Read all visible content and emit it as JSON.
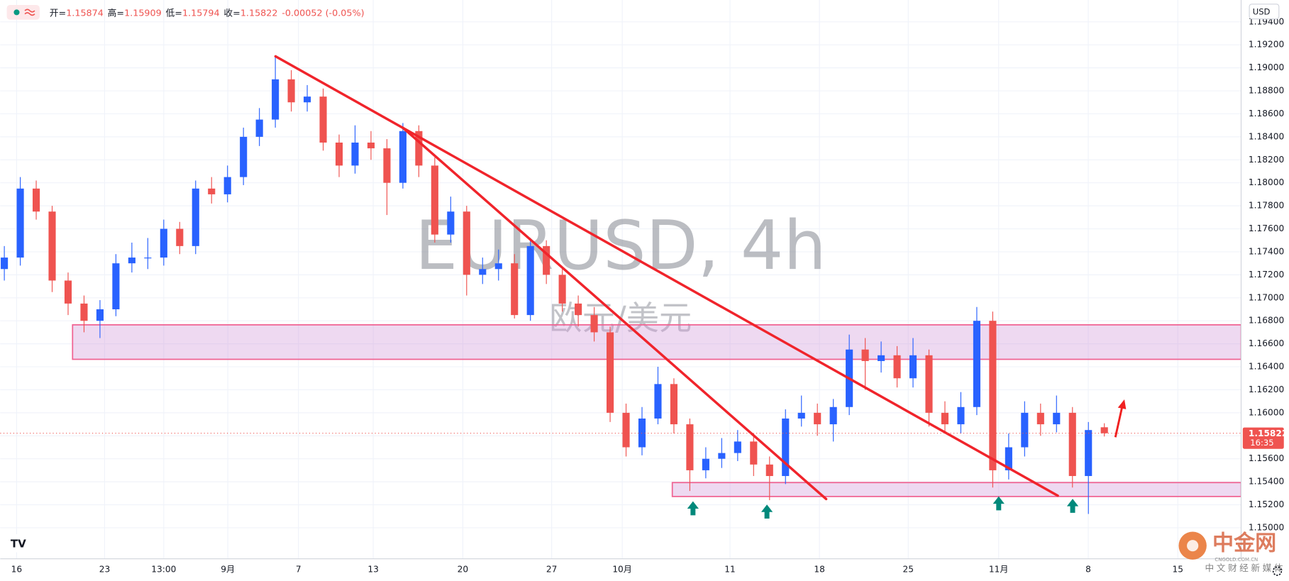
{
  "chart_data": {
    "type": "candlestick",
    "ohlc_labels": [
      "开=",
      "高=",
      "低=",
      "收="
    ],
    "change": "-0.00052 (-0.05%)",
    "symbol_watermark": "EURUSD, 4h",
    "name_watermark": "欧元/美元",
    "currency": "USD",
    "countdown": "16:35",
    "logo": {
      "name": "中金网",
      "site": "CNGOLD.COM.CN",
      "tagline": "中文财经新媒体"
    },
    "up_color": "#2962ff",
    "down_color": "#ef5350",
    "grid": true,
    "xlim": [
      -0.258,
      77.58
    ],
    "ylim": [
      1.1473,
      1.1959
    ],
    "xticks": [
      {
        "value": 0.77,
        "label": "16"
      },
      {
        "value": 6.29,
        "label": "23"
      },
      {
        "value": 10.0,
        "label": "13:00"
      },
      {
        "value": 14.02,
        "label": "9月"
      },
      {
        "value": 18.45,
        "label": "7"
      },
      {
        "value": 23.14,
        "label": "13"
      },
      {
        "value": 28.76,
        "label": "20"
      },
      {
        "value": 34.33,
        "label": "27"
      },
      {
        "value": 38.76,
        "label": "10月"
      },
      {
        "value": 45.52,
        "label": "11"
      },
      {
        "value": 51.13,
        "label": "18"
      },
      {
        "value": 56.7,
        "label": "25"
      },
      {
        "value": 62.37,
        "label": "11月"
      },
      {
        "value": 67.99,
        "label": "8"
      },
      {
        "value": 73.61,
        "label": "15"
      }
    ],
    "yticks": [
      {
        "value": 1.15,
        "label": "1.15000"
      },
      {
        "value": 1.152,
        "label": "1.15200"
      },
      {
        "value": 1.154,
        "label": "1.15400"
      },
      {
        "value": 1.156,
        "label": "1.15600"
      },
      {
        "value": 1.158,
        "label": "1.15800"
      },
      {
        "value": 1.16,
        "label": "1.16000"
      },
      {
        "value": 1.162,
        "label": "1.16200"
      },
      {
        "value": 1.164,
        "label": "1.16400"
      },
      {
        "value": 1.166,
        "label": "1.16600"
      },
      {
        "value": 1.168,
        "label": "1.16800"
      },
      {
        "value": 1.17,
        "label": "1.17000"
      },
      {
        "value": 1.172,
        "label": "1.17200"
      },
      {
        "value": 1.174,
        "label": "1.17400"
      },
      {
        "value": 1.176,
        "label": "1.17600"
      },
      {
        "value": 1.178,
        "label": "1.17800"
      },
      {
        "value": 1.18,
        "label": "1.18000"
      },
      {
        "value": 1.182,
        "label": "1.18200"
      },
      {
        "value": 1.184,
        "label": "1.18400"
      },
      {
        "value": 1.186,
        "label": "1.18600"
      },
      {
        "value": 1.188,
        "label": "1.18800"
      },
      {
        "value": 1.19,
        "label": "1.19000"
      },
      {
        "value": 1.192,
        "label": "1.19200"
      },
      {
        "value": 1.194,
        "label": "1.19400"
      }
    ],
    "candles": {
      "open": [
        1.1725,
        1.1735,
        1.1795,
        1.1775,
        1.1715,
        1.1695,
        1.168,
        1.169,
        1.173,
        1.1735,
        1.1735,
        1.176,
        1.1745,
        1.1795,
        1.179,
        1.1805,
        1.184,
        1.1855,
        1.189,
        1.187,
        1.1875,
        1.1835,
        1.1815,
        1.1835,
        1.183,
        1.18,
        1.1845,
        1.1815,
        1.1755,
        1.1775,
        1.172,
        1.1725,
        1.173,
        1.1685,
        1.1745,
        1.172,
        1.1695,
        1.1685,
        1.167,
        1.16,
        1.157,
        1.1595,
        1.1625,
        1.159,
        1.155,
        1.156,
        1.1565,
        1.1575,
        1.1555,
        1.1545,
        1.1595,
        1.16,
        1.159,
        1.1605,
        1.1655,
        1.1645,
        1.165,
        1.163,
        1.165,
        1.16,
        1.159,
        1.1605,
        1.168,
        1.155,
        1.157,
        1.16,
        1.159,
        1.16,
        1.1545,
        1.15874
      ],
      "high": [
        1.1745,
        1.1805,
        1.1802,
        1.178,
        1.1722,
        1.1702,
        1.1698,
        1.1738,
        1.1748,
        1.1752,
        1.1768,
        1.1766,
        1.1802,
        1.1805,
        1.1815,
        1.1848,
        1.1865,
        1.191,
        1.1898,
        1.1885,
        1.1882,
        1.1842,
        1.185,
        1.1845,
        1.1838,
        1.1852,
        1.185,
        1.1822,
        1.1788,
        1.178,
        1.1735,
        1.1742,
        1.1738,
        1.1752,
        1.175,
        1.1725,
        1.1702,
        1.1692,
        1.1675,
        1.1608,
        1.1605,
        1.164,
        1.163,
        1.1595,
        1.157,
        1.1578,
        1.1585,
        1.1582,
        1.1562,
        1.1603,
        1.1615,
        1.1608,
        1.1612,
        1.1668,
        1.1665,
        1.1662,
        1.1658,
        1.1665,
        1.1655,
        1.161,
        1.1618,
        1.1692,
        1.1688,
        1.1582,
        1.161,
        1.1608,
        1.1615,
        1.1605,
        1.1592,
        1.15909
      ],
      "low": [
        1.1715,
        1.1728,
        1.1768,
        1.1705,
        1.1685,
        1.167,
        1.1665,
        1.1684,
        1.1722,
        1.1725,
        1.1728,
        1.1738,
        1.1738,
        1.1782,
        1.1783,
        1.1798,
        1.1832,
        1.1848,
        1.1862,
        1.1862,
        1.1828,
        1.1805,
        1.1808,
        1.182,
        1.1772,
        1.1795,
        1.1805,
        1.1748,
        1.1748,
        1.1702,
        1.1712,
        1.1715,
        1.1682,
        1.168,
        1.1712,
        1.1688,
        1.1675,
        1.1662,
        1.1592,
        1.1562,
        1.1563,
        1.159,
        1.1582,
        1.1532,
        1.1543,
        1.1552,
        1.1558,
        1.1545,
        1.1524,
        1.1538,
        1.1588,
        1.158,
        1.1575,
        1.1598,
        1.162,
        1.1635,
        1.1622,
        1.1622,
        1.1588,
        1.1582,
        1.1582,
        1.1598,
        1.1535,
        1.1542,
        1.1562,
        1.158,
        1.1583,
        1.1535,
        1.1512,
        1.15794
      ],
      "close": [
        1.1735,
        1.1795,
        1.1775,
        1.1715,
        1.1695,
        1.168,
        1.169,
        1.173,
        1.1735,
        1.1735,
        1.176,
        1.1745,
        1.1795,
        1.179,
        1.1805,
        1.184,
        1.1855,
        1.189,
        1.187,
        1.1875,
        1.1835,
        1.1815,
        1.1835,
        1.183,
        1.18,
        1.1845,
        1.1815,
        1.1755,
        1.1775,
        1.172,
        1.1725,
        1.173,
        1.1685,
        1.1745,
        1.172,
        1.1695,
        1.1685,
        1.167,
        1.16,
        1.157,
        1.1595,
        1.1625,
        1.159,
        1.155,
        1.156,
        1.1565,
        1.1575,
        1.1555,
        1.1545,
        1.1595,
        1.16,
        1.159,
        1.1605,
        1.1655,
        1.1645,
        1.165,
        1.163,
        1.165,
        1.16,
        1.159,
        1.1605,
        1.168,
        1.155,
        1.157,
        1.16,
        1.159,
        1.16,
        1.1545,
        1.1585,
        1.15822
      ]
    },
    "zones": [
      {
        "start": 4.28,
        "from": 1.16465,
        "to": 1.16765
      },
      {
        "start": 41.9,
        "from": 1.15272,
        "to": 1.15393
      }
    ],
    "trend_lines": [
      {
        "from": [
          17.01,
          1.191
        ],
        "to": [
          66.08,
          1.15279
        ]
      },
      {
        "from": [
          25.0,
          1.18479
        ],
        "to": [
          51.55,
          1.1525
        ]
      }
    ]
  }
}
